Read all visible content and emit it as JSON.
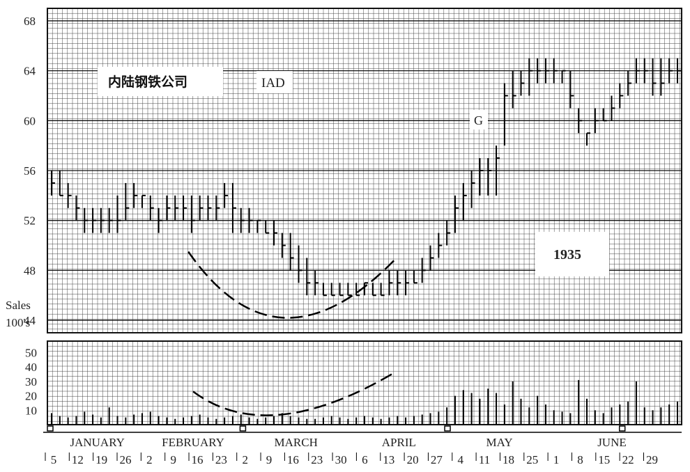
{
  "chart_data": {
    "type": "bar",
    "subtype": "OHLC price bars with volume histogram",
    "title": "内陆钢铁公司",
    "ticker": "IAD",
    "year": "1935",
    "annotation": "G",
    "price_axis": {
      "ylim": [
        43,
        69
      ],
      "ticks": [
        44,
        48,
        52,
        56,
        60,
        64,
        68
      ]
    },
    "volume_axis": {
      "label_line1": "Sales",
      "label_line2": "100's",
      "ylim": [
        0,
        58
      ],
      "ticks": [
        10,
        20,
        30,
        40,
        50
      ]
    },
    "months": [
      "JANUARY",
      "FEBRUARY",
      "MARCH",
      "APRIL",
      "MAY",
      "JUNE"
    ],
    "week_labels": [
      "5",
      "12",
      "19",
      "26",
      "2",
      "9",
      "16",
      "23",
      "2",
      "9",
      "16",
      "23",
      "30",
      "6",
      "13",
      "20",
      "27",
      "4",
      "11",
      "18",
      "25",
      "1",
      "8",
      "15",
      "22",
      "29"
    ],
    "series": [
      {
        "name": "price",
        "x": [
          "Jan 3",
          "Jan 5",
          "Jan 8",
          "Jan 10",
          "Jan 12",
          "Jan 15",
          "Jan 17",
          "Jan 19",
          "Jan 22",
          "Jan 24",
          "Jan 26",
          "Jan 29",
          "Jan 31",
          "Feb 2",
          "Feb 5",
          "Feb 7",
          "Feb 9",
          "Feb 12",
          "Feb 14",
          "Feb 16",
          "Feb 19",
          "Feb 21",
          "Feb 23",
          "Feb 26",
          "Feb 28",
          "Mar 2",
          "Mar 5",
          "Mar 7",
          "Mar 9",
          "Mar 12",
          "Mar 14",
          "Mar 16",
          "Mar 19",
          "Mar 21",
          "Mar 23",
          "Mar 26",
          "Mar 28",
          "Mar 30",
          "Apr 2",
          "Apr 4",
          "Apr 6",
          "Apr 9",
          "Apr 11",
          "Apr 13",
          "Apr 16",
          "Apr 18",
          "Apr 20",
          "Apr 23",
          "Apr 25",
          "Apr 27",
          "Apr 30",
          "May 2",
          "May 4",
          "May 7",
          "May 9",
          "May 11",
          "May 14",
          "May 16",
          "May 18",
          "May 21",
          "May 23",
          "May 25",
          "May 28",
          "May 30",
          "Jun 1",
          "Jun 4",
          "Jun 6",
          "Jun 8",
          "Jun 11",
          "Jun 13",
          "Jun 15",
          "Jun 18",
          "Jun 20",
          "Jun 22",
          "Jun 25",
          "Jun 27",
          "Jun 29"
        ],
        "high": [
          56,
          56,
          55,
          54,
          53,
          53,
          53,
          53,
          54,
          55,
          55,
          54,
          54,
          53,
          54,
          54,
          54,
          54,
          54,
          54,
          54,
          55,
          55,
          53,
          53,
          52,
          52,
          52,
          51,
          51,
          50,
          49,
          48,
          47,
          47,
          47,
          47,
          47,
          47,
          47,
          47,
          48,
          48,
          48,
          48,
          49,
          50,
          51,
          52,
          54,
          55,
          56,
          57,
          57,
          58,
          63,
          64,
          64,
          65,
          65,
          65,
          65,
          64,
          64,
          61,
          59,
          61,
          61,
          62,
          63,
          64,
          65,
          65,
          65,
          65,
          65,
          65
        ],
        "low": [
          54,
          54,
          53,
          52,
          51,
          51,
          51,
          51,
          51,
          52,
          53,
          53,
          52,
          51,
          52,
          52,
          52,
          51,
          52,
          52,
          52,
          53,
          51,
          51,
          51,
          51,
          51,
          50,
          49,
          48,
          47,
          46,
          46,
          46,
          46,
          46,
          46,
          46,
          46,
          46,
          46,
          46,
          46,
          46,
          47,
          47,
          48,
          49,
          50,
          51,
          52,
          53,
          54,
          54,
          54,
          58,
          61,
          62,
          62,
          63,
          63,
          63,
          63,
          61,
          59,
          58,
          59,
          60,
          60,
          61,
          62,
          63,
          63,
          62,
          62,
          63,
          63
        ],
        "close": [
          55,
          54,
          54,
          53,
          52,
          52,
          52,
          52,
          52,
          53,
          54,
          54,
          53,
          52,
          53,
          53,
          53,
          52,
          53,
          53,
          53,
          54,
          53,
          52,
          52,
          52,
          51,
          51,
          50,
          49,
          48,
          47,
          47,
          46,
          46,
          46,
          46,
          46,
          47,
          46,
          46,
          47,
          47,
          47,
          47,
          48,
          49,
          50,
          51,
          53,
          54,
          55,
          56,
          56,
          57,
          62,
          62,
          63,
          64,
          64,
          64,
          64,
          64,
          62,
          60,
          59,
          60,
          60,
          61,
          62,
          63,
          64,
          64,
          63,
          63,
          64,
          64
        ]
      },
      {
        "name": "volume",
        "values": [
          8,
          6,
          5,
          6,
          9,
          7,
          5,
          12,
          6,
          5,
          7,
          8,
          9,
          6,
          5,
          4,
          5,
          6,
          7,
          5,
          4,
          5,
          6,
          7,
          5,
          4,
          5,
          6,
          8,
          6,
          5,
          4,
          4,
          5,
          6,
          5,
          4,
          5,
          6,
          5,
          4,
          5,
          6,
          5,
          6,
          7,
          8,
          9,
          12,
          20,
          24,
          22,
          18,
          25,
          22,
          14,
          30,
          18,
          12,
          20,
          14,
          10,
          9,
          8,
          31,
          18,
          10,
          8,
          12,
          14,
          16,
          30,
          12,
          10,
          12,
          14,
          16
        ]
      }
    ],
    "price_curve": {
      "from": [
        5.8,
        49.5
      ],
      "bottom": [
        9.85,
        44.2
      ],
      "to": [
        14.5,
        49.0
      ]
    },
    "volume_curve": {
      "from": [
        6,
        23
      ],
      "bottom": [
        9.7,
        7
      ],
      "to": [
        14.5,
        37
      ]
    }
  }
}
